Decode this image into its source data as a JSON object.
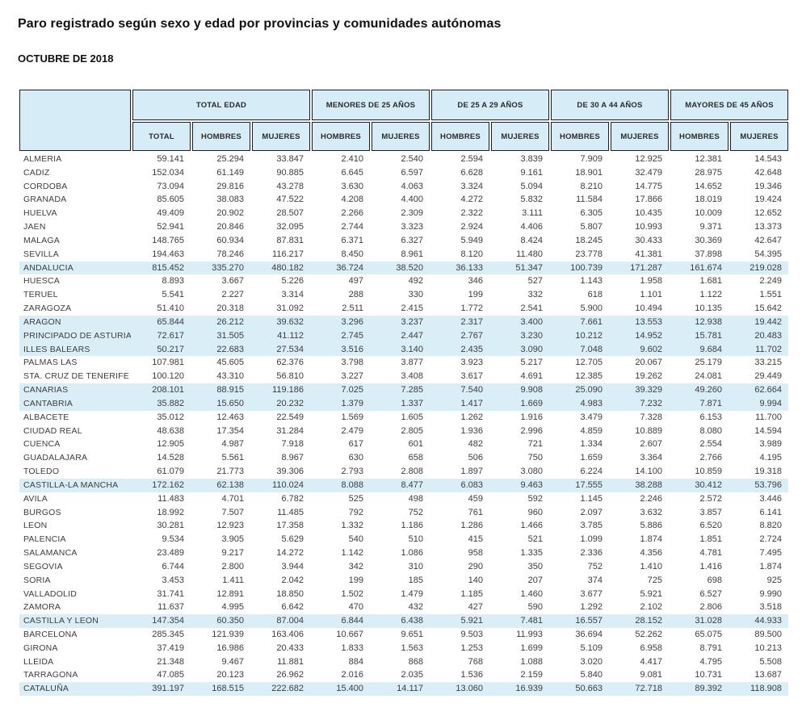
{
  "title": "Paro registrado según sexo y edad  por provincias y comunidades autónomas",
  "subtitle": "OCTUBRE DE 2018",
  "colors": {
    "header_bg": "#d6ecf7",
    "highlight_bg": "#daeef8",
    "border": "#1c1c1c",
    "text": "#3d3d3d"
  },
  "table": {
    "groups": [
      {
        "label": "TOTAL EDAD",
        "span": 3
      },
      {
        "label": "MENORES DE 25 AÑOS",
        "span": 2
      },
      {
        "label": "DE 25 A 29 AÑOS",
        "span": 2
      },
      {
        "label": "DE 30 A 44 AÑOS",
        "span": 2
      },
      {
        "label": "MAYORES DE 45 AÑOS",
        "span": 2
      }
    ],
    "subheaders": [
      "TOTAL",
      "HOMBRES",
      "MUJERES",
      "HOMBRES",
      "MUJERES",
      "HOMBRES",
      "MUJERES",
      "HOMBRES",
      "MUJERES",
      "HOMBRES",
      "MUJERES"
    ],
    "rows": [
      {
        "name": "ALMERIA",
        "highlight": false,
        "values": [
          "59.141",
          "25.294",
          "33.847",
          "2.410",
          "2.540",
          "2.594",
          "3.839",
          "7.909",
          "12.925",
          "12.381",
          "14.543"
        ]
      },
      {
        "name": "CADIZ",
        "highlight": false,
        "values": [
          "152.034",
          "61.149",
          "90.885",
          "6.645",
          "6.597",
          "6.628",
          "9.161",
          "18.901",
          "32.479",
          "28.975",
          "42.648"
        ]
      },
      {
        "name": "CORDOBA",
        "highlight": false,
        "values": [
          "73.094",
          "29.816",
          "43.278",
          "3.630",
          "4.063",
          "3.324",
          "5.094",
          "8.210",
          "14.775",
          "14.652",
          "19.346"
        ]
      },
      {
        "name": "GRANADA",
        "highlight": false,
        "values": [
          "85.605",
          "38.083",
          "47.522",
          "4.208",
          "4.400",
          "4.272",
          "5.832",
          "11.584",
          "17.866",
          "18.019",
          "19.424"
        ]
      },
      {
        "name": "HUELVA",
        "highlight": false,
        "values": [
          "49.409",
          "20.902",
          "28.507",
          "2.266",
          "2.309",
          "2.322",
          "3.111",
          "6.305",
          "10.435",
          "10.009",
          "12.652"
        ]
      },
      {
        "name": "JAEN",
        "highlight": false,
        "values": [
          "52.941",
          "20.846",
          "32.095",
          "2.744",
          "3.323",
          "2.924",
          "4.406",
          "5.807",
          "10.993",
          "9.371",
          "13.373"
        ]
      },
      {
        "name": "MALAGA",
        "highlight": false,
        "values": [
          "148.765",
          "60.934",
          "87.831",
          "6.371",
          "6.327",
          "5.949",
          "8.424",
          "18.245",
          "30.433",
          "30.369",
          "42.647"
        ]
      },
      {
        "name": "SEVILLA",
        "highlight": false,
        "values": [
          "194.463",
          "78.246",
          "116.217",
          "8.450",
          "8.961",
          "8.120",
          "11.480",
          "23.778",
          "41.381",
          "37.898",
          "54.395"
        ]
      },
      {
        "name": "ANDALUCIA",
        "highlight": true,
        "values": [
          "815.452",
          "335.270",
          "480.182",
          "36.724",
          "38.520",
          "36.133",
          "51.347",
          "100.739",
          "171.287",
          "161.674",
          "219.028"
        ]
      },
      {
        "name": "HUESCA",
        "highlight": false,
        "values": [
          "8.893",
          "3.667",
          "5.226",
          "497",
          "492",
          "346",
          "527",
          "1.143",
          "1.958",
          "1.681",
          "2.249"
        ]
      },
      {
        "name": "TERUEL",
        "highlight": false,
        "values": [
          "5.541",
          "2.227",
          "3.314",
          "288",
          "330",
          "199",
          "332",
          "618",
          "1.101",
          "1.122",
          "1.551"
        ]
      },
      {
        "name": "ZARAGOZA",
        "highlight": false,
        "values": [
          "51.410",
          "20.318",
          "31.092",
          "2.511",
          "2.415",
          "1.772",
          "2.541",
          "5.900",
          "10.494",
          "10.135",
          "15.642"
        ]
      },
      {
        "name": "ARAGON",
        "highlight": true,
        "values": [
          "65.844",
          "26.212",
          "39.632",
          "3.296",
          "3.237",
          "2.317",
          "3.400",
          "7.661",
          "13.553",
          "12.938",
          "19.442"
        ]
      },
      {
        "name": "PRINCIPADO DE ASTURIA",
        "highlight": true,
        "values": [
          "72.617",
          "31.505",
          "41.112",
          "2.745",
          "2.447",
          "2.767",
          "3.230",
          "10.212",
          "14.952",
          "15.781",
          "20.483"
        ]
      },
      {
        "name": "ILLES BALEARS",
        "highlight": true,
        "values": [
          "50.217",
          "22.683",
          "27.534",
          "3.516",
          "3.140",
          "2.435",
          "3.090",
          "7.048",
          "9.602",
          "9.684",
          "11.702"
        ]
      },
      {
        "name": "PALMAS LAS",
        "highlight": false,
        "values": [
          "107.981",
          "45.605",
          "62.376",
          "3.798",
          "3.877",
          "3.923",
          "5.217",
          "12.705",
          "20.067",
          "25.179",
          "33.215"
        ]
      },
      {
        "name": "STA. CRUZ DE TENERIFE",
        "highlight": false,
        "values": [
          "100.120",
          "43.310",
          "56.810",
          "3.227",
          "3.408",
          "3.617",
          "4.691",
          "12.385",
          "19.262",
          "24.081",
          "29.449"
        ]
      },
      {
        "name": "CANARIAS",
        "highlight": true,
        "values": [
          "208.101",
          "88.915",
          "119.186",
          "7.025",
          "7.285",
          "7.540",
          "9.908",
          "25.090",
          "39.329",
          "49.260",
          "62.664"
        ]
      },
      {
        "name": "CANTABRIA",
        "highlight": true,
        "values": [
          "35.882",
          "15.650",
          "20.232",
          "1.379",
          "1.337",
          "1.417",
          "1.669",
          "4.983",
          "7.232",
          "7.871",
          "9.994"
        ]
      },
      {
        "name": "ALBACETE",
        "highlight": false,
        "values": [
          "35.012",
          "12.463",
          "22.549",
          "1.569",
          "1.605",
          "1.262",
          "1.916",
          "3.479",
          "7.328",
          "6.153",
          "11.700"
        ]
      },
      {
        "name": "CIUDAD REAL",
        "highlight": false,
        "values": [
          "48.638",
          "17.354",
          "31.284",
          "2.479",
          "2.805",
          "1.936",
          "2.996",
          "4.859",
          "10.889",
          "8.080",
          "14.594"
        ]
      },
      {
        "name": "CUENCA",
        "highlight": false,
        "values": [
          "12.905",
          "4.987",
          "7.918",
          "617",
          "601",
          "482",
          "721",
          "1.334",
          "2.607",
          "2.554",
          "3.989"
        ]
      },
      {
        "name": "GUADALAJARA",
        "highlight": false,
        "values": [
          "14.528",
          "5.561",
          "8.967",
          "630",
          "658",
          "506",
          "750",
          "1.659",
          "3.364",
          "2.766",
          "4.195"
        ]
      },
      {
        "name": "TOLEDO",
        "highlight": false,
        "values": [
          "61.079",
          "21.773",
          "39.306",
          "2.793",
          "2.808",
          "1.897",
          "3.080",
          "6.224",
          "14.100",
          "10.859",
          "19.318"
        ]
      },
      {
        "name": "CASTILLA-LA MANCHA",
        "highlight": true,
        "values": [
          "172.162",
          "62.138",
          "110.024",
          "8.088",
          "8.477",
          "6.083",
          "9.463",
          "17.555",
          "38.288",
          "30.412",
          "53.796"
        ]
      },
      {
        "name": "AVILA",
        "highlight": false,
        "values": [
          "11.483",
          "4.701",
          "6.782",
          "525",
          "498",
          "459",
          "592",
          "1.145",
          "2.246",
          "2.572",
          "3.446"
        ]
      },
      {
        "name": "BURGOS",
        "highlight": false,
        "values": [
          "18.992",
          "7.507",
          "11.485",
          "792",
          "752",
          "761",
          "960",
          "2.097",
          "3.632",
          "3.857",
          "6.141"
        ]
      },
      {
        "name": "LEON",
        "highlight": false,
        "values": [
          "30.281",
          "12.923",
          "17.358",
          "1.332",
          "1.186",
          "1.286",
          "1.466",
          "3.785",
          "5.886",
          "6.520",
          "8.820"
        ]
      },
      {
        "name": "PALENCIA",
        "highlight": false,
        "values": [
          "9.534",
          "3.905",
          "5.629",
          "540",
          "510",
          "415",
          "521",
          "1.099",
          "1.874",
          "1.851",
          "2.724"
        ]
      },
      {
        "name": "SALAMANCA",
        "highlight": false,
        "values": [
          "23.489",
          "9.217",
          "14.272",
          "1.142",
          "1.086",
          "958",
          "1.335",
          "2.336",
          "4.356",
          "4.781",
          "7.495"
        ]
      },
      {
        "name": "SEGOVIA",
        "highlight": false,
        "values": [
          "6.744",
          "2.800",
          "3.944",
          "342",
          "310",
          "290",
          "350",
          "752",
          "1.410",
          "1.416",
          "1.874"
        ]
      },
      {
        "name": "SORIA",
        "highlight": false,
        "values": [
          "3.453",
          "1.411",
          "2.042",
          "199",
          "185",
          "140",
          "207",
          "374",
          "725",
          "698",
          "925"
        ]
      },
      {
        "name": "VALLADOLID",
        "highlight": false,
        "values": [
          "31.741",
          "12.891",
          "18.850",
          "1.502",
          "1.479",
          "1.185",
          "1.460",
          "3.677",
          "5.921",
          "6.527",
          "9.990"
        ]
      },
      {
        "name": "ZAMORA",
        "highlight": false,
        "values": [
          "11.637",
          "4.995",
          "6.642",
          "470",
          "432",
          "427",
          "590",
          "1.292",
          "2.102",
          "2.806",
          "3.518"
        ]
      },
      {
        "name": "CASTILLA Y LEON",
        "highlight": true,
        "values": [
          "147.354",
          "60.350",
          "87.004",
          "6.844",
          "6.438",
          "5.921",
          "7.481",
          "16.557",
          "28.152",
          "31.028",
          "44.933"
        ]
      },
      {
        "name": "BARCELONA",
        "highlight": false,
        "values": [
          "285.345",
          "121.939",
          "163.406",
          "10.667",
          "9.651",
          "9.503",
          "11.993",
          "36.694",
          "52.262",
          "65.075",
          "89.500"
        ]
      },
      {
        "name": "GIRONA",
        "highlight": false,
        "values": [
          "37.419",
          "16.986",
          "20.433",
          "1.833",
          "1.563",
          "1.253",
          "1.699",
          "5.109",
          "6.958",
          "8.791",
          "10.213"
        ]
      },
      {
        "name": "LLEIDA",
        "highlight": false,
        "values": [
          "21.348",
          "9.467",
          "11.881",
          "884",
          "868",
          "768",
          "1.088",
          "3.020",
          "4.417",
          "4.795",
          "5.508"
        ]
      },
      {
        "name": "TARRAGONA",
        "highlight": false,
        "values": [
          "47.085",
          "20.123",
          "26.962",
          "2.016",
          "2.035",
          "1.536",
          "2.159",
          "5.840",
          "9.081",
          "10.731",
          "13.687"
        ]
      },
      {
        "name": "CATALUÑA",
        "highlight": true,
        "values": [
          "391.197",
          "168.515",
          "222.682",
          "15.400",
          "14.117",
          "13.060",
          "16.939",
          "50.663",
          "72.718",
          "89.392",
          "118.908"
        ]
      }
    ]
  }
}
